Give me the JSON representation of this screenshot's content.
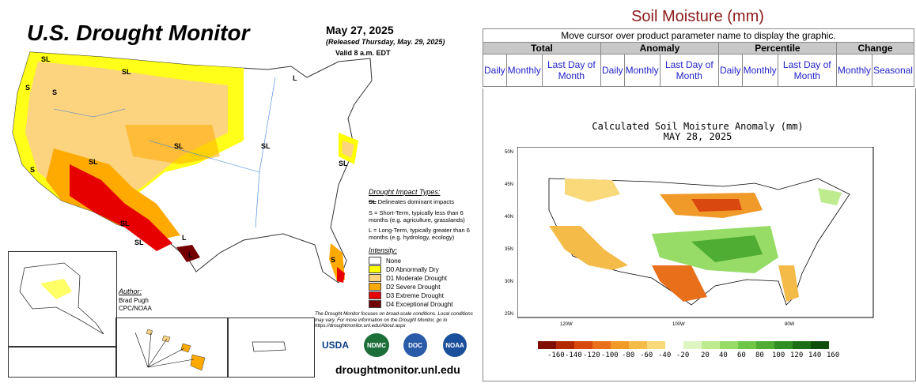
{
  "drought_monitor": {
    "title": "U.S. Drought Monitor",
    "date": "May 27, 2025",
    "released": "(Released Thursday, May. 29, 2025)",
    "valid": "Valid 8 a.m. EDT",
    "impact_title": "Drought Impact Types:",
    "impact_items": [
      "Delineates dominant impacts",
      "S = Short-Term, typically less than 6 months (e.g. agriculture, grasslands)",
      "L = Long-Term, typically greater than 6 months (e.g. hydrology, ecology)"
    ],
    "intensity_title": "Intensity:",
    "intensity": [
      {
        "label": "None",
        "color": "#ffffff"
      },
      {
        "label": "D0 Abnormally Dry",
        "color": "#ffff00"
      },
      {
        "label": "D1 Moderate Drought",
        "color": "#fcd37f"
      },
      {
        "label": "D2 Severe Drought",
        "color": "#ffaa00"
      },
      {
        "label": "D3 Extreme Drought",
        "color": "#e60000"
      },
      {
        "label": "D4 Exceptional Drought",
        "color": "#730000"
      }
    ],
    "author_title": "Author:",
    "author_name": "Brad Pugh",
    "author_org": "CPC/NOAA",
    "footnote": "The Drought Monitor focuses on broad-scale conditions. Local conditions may vary. For more information on the Drought Monitor, go to https://droughtmonitor.unl.edu/About.aspx",
    "url": "droughtmonitor.unl.edu",
    "logos": [
      "USDA",
      "NDMC",
      "DOC",
      "NOAA"
    ],
    "map_labels": [
      "SL",
      "SL",
      "S",
      "S",
      "L",
      "SL",
      "SL",
      "SL",
      "SL",
      "SL",
      "L",
      "S",
      "SL",
      "L",
      "L",
      "S",
      "S"
    ]
  },
  "soil_moisture": {
    "title": "Soil Moisture (mm)",
    "hover_hint": "Move cursor over product parameter name to display the graphic.",
    "groups": [
      "Total",
      "Anomaly",
      "Percentile",
      "Change"
    ],
    "links": [
      "Daily",
      "Monthly",
      "Last Day of Month",
      "Daily",
      "Monthly",
      "Last Day of Month",
      "Daily",
      "Monthly",
      "Last Day of Month",
      "Monthly",
      "Seasonal"
    ],
    "chart_title_1": "Calculated Soil Moisture Anomaly (mm)",
    "chart_title_2": "MAY 28, 2025",
    "lat_labels": [
      "50N",
      "45N",
      "40N",
      "35N",
      "30N",
      "25N"
    ],
    "lon_labels": [
      "120W",
      "100W",
      "80W"
    ],
    "colorbar_labels": [
      "-160",
      "-140",
      "-120",
      "-100",
      "-80",
      "-60",
      "-40",
      "-20",
      "20",
      "40",
      "60",
      "80",
      "100",
      "120",
      "140",
      "160"
    ],
    "colorbar_colors": [
      "#7f1000",
      "#b22a00",
      "#d9480f",
      "#e8701a",
      "#f09a2a",
      "#f5bb48",
      "#fad97a",
      "#ffffff",
      "#dff5c2",
      "#bdeb8e",
      "#96dc66",
      "#6fc748",
      "#4ead32",
      "#2f8f22",
      "#1b6f14",
      "#0c4e0a"
    ]
  }
}
